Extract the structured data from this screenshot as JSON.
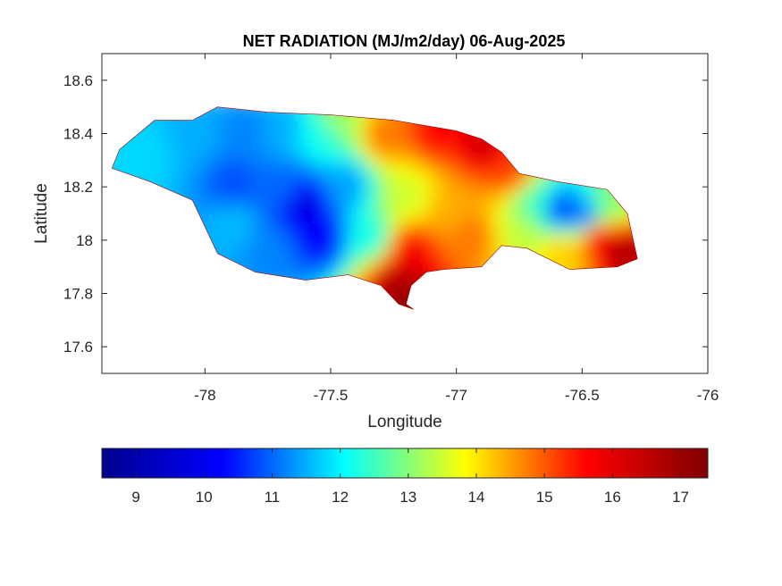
{
  "title": "NET RADIATION (MJ/m2/day) 06-Aug-2025",
  "map": {
    "xlabel": "Longitude",
    "ylabel": "Latitude",
    "xlim": [
      -78.41,
      -76.0
    ],
    "ylim": [
      17.5,
      18.7
    ],
    "xticks": [
      -78,
      -77.5,
      -77,
      -76.5,
      -76
    ],
    "xtick_labels": [
      "-78",
      "-77.5",
      "-77",
      "-76.5",
      "-76"
    ],
    "yticks": [
      17.6,
      17.8,
      18.0,
      18.2,
      18.4,
      18.6
    ],
    "ytick_labels": [
      "17.6",
      "17.8",
      "18",
      "18.2",
      "18.4",
      "18.6"
    ]
  },
  "colorbar": {
    "colormap": "jet",
    "range": [
      8.5,
      17.4
    ],
    "ticks": [
      9,
      10,
      11,
      12,
      13,
      14,
      15,
      16,
      17
    ],
    "tick_labels": [
      "9",
      "10",
      "11",
      "12",
      "13",
      "14",
      "15",
      "16",
      "17"
    ],
    "stops": [
      "#00008f",
      "#0000ff",
      "#00ffff",
      "#ffff00",
      "#ff0000",
      "#800000"
    ]
  },
  "outline_lonlat": [
    [
      -78.37,
      18.27
    ],
    [
      -78.34,
      18.34
    ],
    [
      -78.2,
      18.45
    ],
    [
      -78.05,
      18.45
    ],
    [
      -77.95,
      18.5
    ],
    [
      -77.75,
      18.48
    ],
    [
      -77.5,
      18.47
    ],
    [
      -77.25,
      18.45
    ],
    [
      -77.0,
      18.41
    ],
    [
      -76.9,
      18.38
    ],
    [
      -76.82,
      18.33
    ],
    [
      -76.75,
      18.25
    ],
    [
      -76.6,
      18.22
    ],
    [
      -76.4,
      18.19
    ],
    [
      -76.32,
      18.1
    ],
    [
      -76.28,
      17.93
    ],
    [
      -76.36,
      17.9
    ],
    [
      -76.55,
      17.89
    ],
    [
      -76.72,
      17.97
    ],
    [
      -76.82,
      17.98
    ],
    [
      -76.9,
      17.9
    ],
    [
      -77.05,
      17.89
    ],
    [
      -77.12,
      17.88
    ],
    [
      -77.18,
      17.83
    ],
    [
      -77.2,
      17.76
    ],
    [
      -77.17,
      17.74
    ],
    [
      -77.23,
      17.76
    ],
    [
      -77.3,
      17.83
    ],
    [
      -77.43,
      17.87
    ],
    [
      -77.6,
      17.85
    ],
    [
      -77.8,
      17.88
    ],
    [
      -77.95,
      17.95
    ],
    [
      -78.0,
      18.05
    ],
    [
      -78.05,
      18.15
    ],
    [
      -78.22,
      18.22
    ]
  ],
  "field_anchors": [
    {
      "lon": -78.25,
      "lat": 18.3,
      "value": 11.8
    },
    {
      "lon": -78.05,
      "lat": 18.38,
      "value": 11.5
    },
    {
      "lon": -77.85,
      "lat": 18.4,
      "value": 11.2
    },
    {
      "lon": -77.7,
      "lat": 18.42,
      "value": 11.5
    },
    {
      "lon": -77.55,
      "lat": 18.4,
      "value": 12.2
    },
    {
      "lon": -77.5,
      "lat": 18.44,
      "value": 13.2
    },
    {
      "lon": -77.3,
      "lat": 18.38,
      "value": 14.8
    },
    {
      "lon": -77.1,
      "lat": 18.4,
      "value": 15.6
    },
    {
      "lon": -76.9,
      "lat": 18.35,
      "value": 16.2
    },
    {
      "lon": -76.8,
      "lat": 18.25,
      "value": 15.2
    },
    {
      "lon": -77.9,
      "lat": 18.2,
      "value": 10.8
    },
    {
      "lon": -77.7,
      "lat": 18.18,
      "value": 11.0
    },
    {
      "lon": -77.62,
      "lat": 18.12,
      "value": 9.8
    },
    {
      "lon": -77.55,
      "lat": 18.0,
      "value": 10.2
    },
    {
      "lon": -77.45,
      "lat": 18.2,
      "value": 11.4
    },
    {
      "lon": -77.35,
      "lat": 18.0,
      "value": 12.2
    },
    {
      "lon": -77.2,
      "lat": 18.15,
      "value": 13.5
    },
    {
      "lon": -77.05,
      "lat": 18.1,
      "value": 14.4
    },
    {
      "lon": -76.95,
      "lat": 18.0,
      "value": 14.8
    },
    {
      "lon": -77.2,
      "lat": 17.95,
      "value": 15.8
    },
    {
      "lon": -77.25,
      "lat": 17.82,
      "value": 16.8
    },
    {
      "lon": -77.2,
      "lat": 17.75,
      "value": 17.2
    },
    {
      "lon": -77.75,
      "lat": 17.95,
      "value": 11.2
    },
    {
      "lon": -77.9,
      "lat": 18.05,
      "value": 11.6
    },
    {
      "lon": -76.7,
      "lat": 18.12,
      "value": 12.5
    },
    {
      "lon": -76.6,
      "lat": 18.1,
      "value": 10.6
    },
    {
      "lon": -76.5,
      "lat": 18.08,
      "value": 11.0
    },
    {
      "lon": -76.45,
      "lat": 18.0,
      "value": 15.8
    },
    {
      "lon": -76.35,
      "lat": 17.95,
      "value": 16.8
    },
    {
      "lon": -76.4,
      "lat": 18.12,
      "value": 13.0
    },
    {
      "lon": -76.6,
      "lat": 17.95,
      "value": 14.2
    },
    {
      "lon": -76.75,
      "lat": 18.02,
      "value": 13.4
    }
  ]
}
